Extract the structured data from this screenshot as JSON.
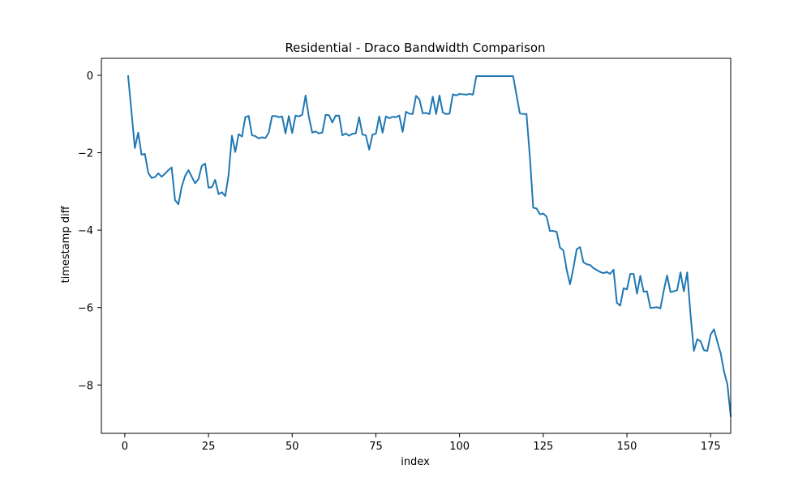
{
  "chart_data": {
    "type": "line",
    "title": "Residential - Draco Bandwidth Comparison",
    "xlabel": "index",
    "ylabel": "timestamp diff",
    "xlim": [
      -7,
      181
    ],
    "ylim": [
      -9.25,
      0.44
    ],
    "xticks": [
      0,
      25,
      50,
      75,
      100,
      125,
      150,
      175
    ],
    "yticks": [
      0,
      -2,
      -4,
      -6,
      -8
    ],
    "xtick_labels": [
      "0",
      "25",
      "50",
      "75",
      "100",
      "125",
      "150",
      "175"
    ],
    "ytick_labels": [
      "0",
      "−2",
      "−4",
      "−6",
      "−8"
    ],
    "grid": false,
    "series": [
      {
        "color": "#1f77b4",
        "x_start": 1,
        "values": [
          -0.02,
          -0.95,
          -1.88,
          -1.48,
          -2.05,
          -2.03,
          -2.52,
          -2.65,
          -2.63,
          -2.53,
          -2.62,
          -2.54,
          -2.45,
          -2.38,
          -3.22,
          -3.33,
          -2.88,
          -2.6,
          -2.45,
          -2.62,
          -2.79,
          -2.68,
          -2.34,
          -2.28,
          -2.9,
          -2.89,
          -2.7,
          -3.07,
          -3.02,
          -3.12,
          -2.58,
          -1.56,
          -1.98,
          -1.52,
          -1.58,
          -1.08,
          -1.05,
          -1.55,
          -1.57,
          -1.63,
          -1.6,
          -1.62,
          -1.48,
          -1.05,
          -1.05,
          -1.08,
          -1.06,
          -1.5,
          -1.05,
          -1.49,
          -1.04,
          -1.06,
          -1.02,
          -0.52,
          -1.08,
          -1.48,
          -1.45,
          -1.5,
          -1.48,
          -1.02,
          -1.03,
          -1.22,
          -1.04,
          -1.04,
          -1.55,
          -1.5,
          -1.56,
          -1.51,
          -1.5,
          -1.08,
          -1.53,
          -1.55,
          -1.92,
          -1.53,
          -1.51,
          -1.06,
          -1.48,
          -1.06,
          -1.11,
          -1.07,
          -1.08,
          -1.04,
          -1.46,
          -0.94,
          -0.99,
          -1.0,
          -0.53,
          -0.62,
          -0.98,
          -0.97,
          -1.0,
          -0.55,
          -1.0,
          -0.52,
          -0.96,
          -1.0,
          -0.99,
          -0.49,
          -0.52,
          -0.48,
          -0.49,
          -0.5,
          -0.48,
          -0.5,
          -0.02,
          -0.02,
          -0.02,
          -0.02,
          -0.02,
          -0.02,
          -0.02,
          -0.02,
          -0.02,
          -0.02,
          -0.02,
          -0.02,
          -0.5,
          -0.98,
          -1.0,
          -1.0,
          -2.1,
          -3.42,
          -3.44,
          -3.59,
          -3.57,
          -3.65,
          -4.02,
          -4.02,
          -4.04,
          -4.45,
          -4.52,
          -5.02,
          -5.4,
          -4.98,
          -4.49,
          -4.44,
          -4.83,
          -4.88,
          -4.9,
          -4.98,
          -5.03,
          -5.08,
          -5.11,
          -5.08,
          -5.13,
          -5.02,
          -5.88,
          -5.95,
          -5.5,
          -5.53,
          -5.13,
          -5.13,
          -5.64,
          -5.18,
          -5.59,
          -5.58,
          -6.01,
          -6.0,
          -5.99,
          -6.02,
          -5.56,
          -5.17,
          -5.6,
          -5.58,
          -5.55,
          -5.09,
          -5.58,
          -5.09,
          -6.18,
          -7.12,
          -6.82,
          -6.87,
          -7.1,
          -7.12,
          -6.7,
          -6.56,
          -6.88,
          -7.18,
          -7.65,
          -7.98,
          -8.8
        ]
      }
    ]
  }
}
